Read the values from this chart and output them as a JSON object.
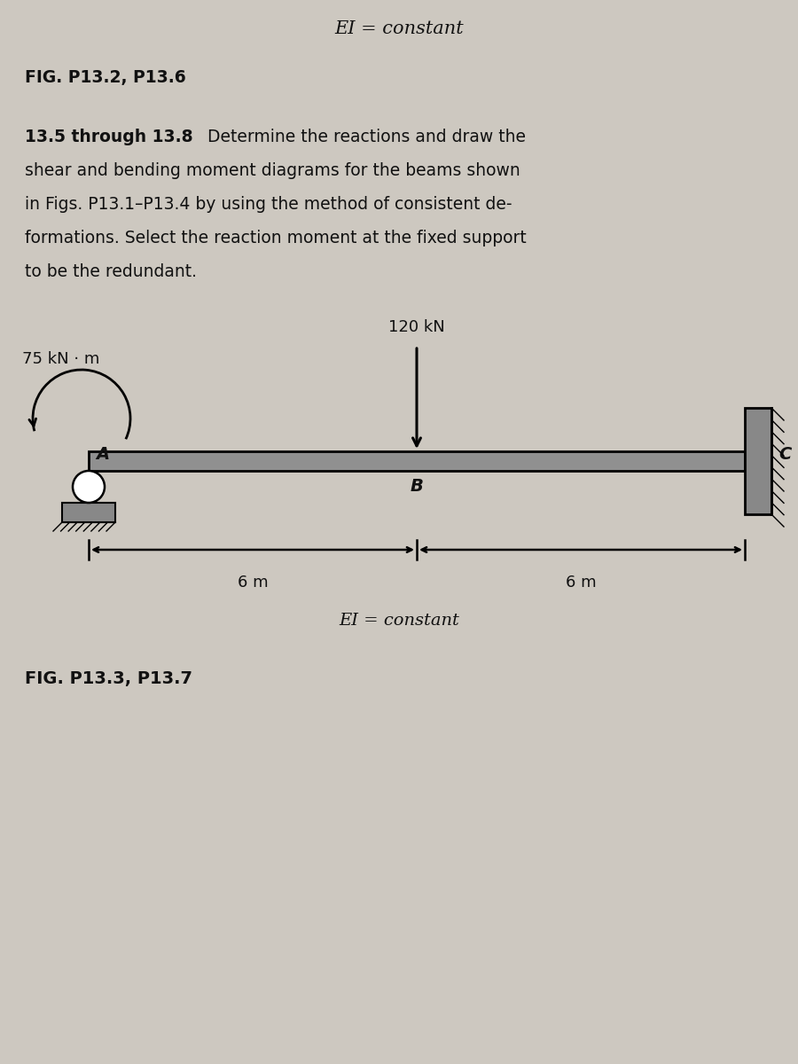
{
  "bg_color": "#cdc8c0",
  "title_ei": "EI = constant",
  "fig_label_top": "FIG. P13.2, P13.6",
  "problem_bold": "13.5 through 13.8",
  "problem_normal_line1": " Determine the reactions and draw the",
  "problem_normal_line2": "shear and bending moment diagrams for the beams shown",
  "problem_normal_line3": "in Figs. P13.1–P13.4 by using the method of consistent de-",
  "problem_normal_line4": "formations. Select the reaction moment at the fixed support",
  "problem_normal_line5": "to be the redundant.",
  "moment_label": "75 kN · m",
  "force_label": "120 kN",
  "label_A": "A",
  "label_B": "B",
  "label_C": "C",
  "span_left": "6 m",
  "span_right": "6 m",
  "ei_bottom": "EI = constant",
  "fig_label_bottom": "FIG. P13.3, P13.7",
  "beam_color": "#909090",
  "wall_fill": "#888888",
  "text_color": "#111111"
}
